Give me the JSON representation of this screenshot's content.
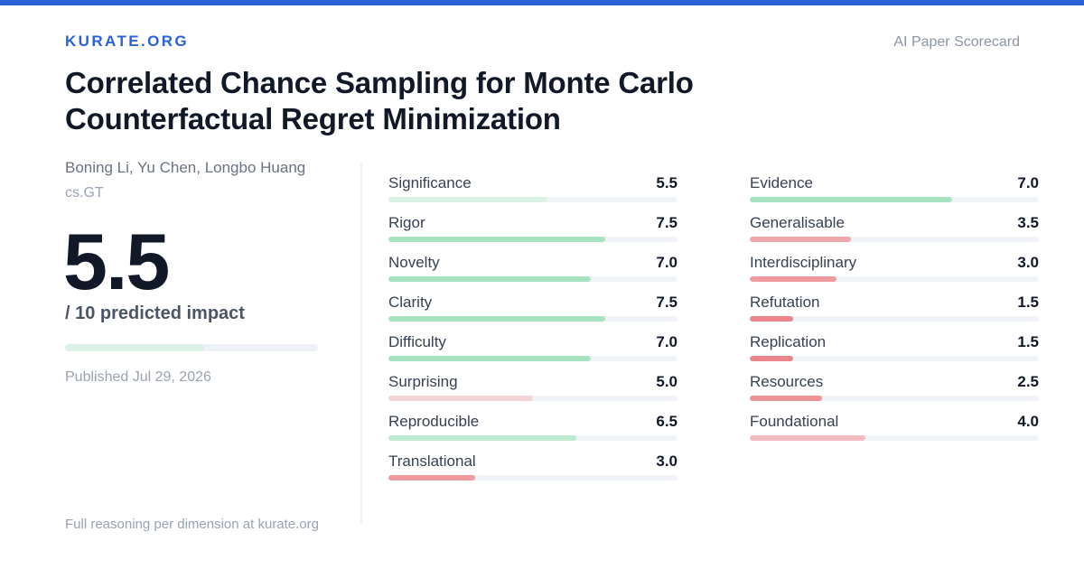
{
  "brand": "KURATE.ORG",
  "tagline": "AI Paper Scorecard",
  "paper": {
    "title": "Correlated Chance Sampling for Monte Carlo Counterfactual Regret Minimization",
    "authors": "Boning Li, Yu Chen, Longbo Huang",
    "category": "cs.GT"
  },
  "score": {
    "value": "5.5",
    "caption": "/ 10 predicted impact",
    "fraction": 0.55,
    "color": "#dcf1e6"
  },
  "published": "Published Jul 29, 2026",
  "footer": "Full reasoning per dimension at kurate.org",
  "colors": {
    "accent": "#2a62d8",
    "high": "#a8e3c1",
    "mid_high": "#cdeedb",
    "mid_low": "#f3cfd2",
    "low": "#f0a6aa",
    "very_low": "#ec8589"
  },
  "dimensions_left": [
    {
      "label": "Significance",
      "value": "5.5",
      "score": 5.5,
      "color": "#dcf1e6"
    },
    {
      "label": "Rigor",
      "value": "7.5",
      "score": 7.5,
      "color": "#a8e3c1"
    },
    {
      "label": "Novelty",
      "value": "7.0",
      "score": 7.0,
      "color": "#a8e3c1"
    },
    {
      "label": "Clarity",
      "value": "7.5",
      "score": 7.5,
      "color": "#a8e3c1"
    },
    {
      "label": "Difficulty",
      "value": "7.0",
      "score": 7.0,
      "color": "#a8e3c1"
    },
    {
      "label": "Surprising",
      "value": "5.0",
      "score": 5.0,
      "color": "#f3d3d6"
    },
    {
      "label": "Reproducible",
      "value": "6.5",
      "score": 6.5,
      "color": "#bfe9d0"
    },
    {
      "label": "Translational",
      "value": "3.0",
      "score": 3.0,
      "color": "#ee9a9e"
    }
  ],
  "dimensions_right": [
    {
      "label": "Evidence",
      "value": "7.0",
      "score": 7.0,
      "color": "#a8e3c1"
    },
    {
      "label": "Generalisable",
      "value": "3.5",
      "score": 3.5,
      "color": "#f0a6aa"
    },
    {
      "label": "Interdisciplinary",
      "value": "3.0",
      "score": 3.0,
      "color": "#ee9a9e"
    },
    {
      "label": "Refutation",
      "value": "1.5",
      "score": 1.5,
      "color": "#ec8589"
    },
    {
      "label": "Replication",
      "value": "1.5",
      "score": 1.5,
      "color": "#ec8589"
    },
    {
      "label": "Resources",
      "value": "2.5",
      "score": 2.5,
      "color": "#ee9296"
    },
    {
      "label": "Foundational",
      "value": "4.0",
      "score": 4.0,
      "color": "#f3bcc0"
    }
  ]
}
